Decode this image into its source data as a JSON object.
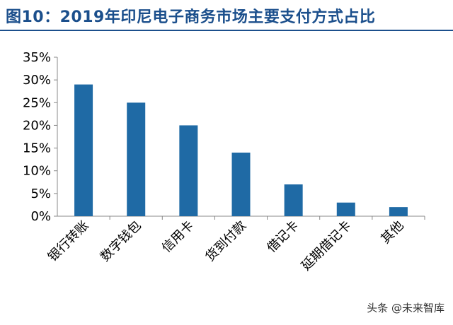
{
  "chart_data": {
    "type": "bar",
    "title": "图10：2019年印尼电子商务市场主要支付方式占比",
    "categories": [
      "银行转账",
      "数字钱包",
      "信用卡",
      "货到付款",
      "借记卡",
      "延期借记卡",
      "其他"
    ],
    "values": [
      29,
      25,
      20,
      14,
      7,
      3,
      2
    ],
    "ylim": [
      0,
      35
    ],
    "yticks": [
      "0%",
      "5%",
      "10%",
      "15%",
      "20%",
      "25%",
      "30%",
      "35%"
    ],
    "xlabel": "",
    "ylabel": "",
    "bar_color": "#1f6aa5",
    "grid": false,
    "legend": "none"
  },
  "watermark": "头条 @未来智库"
}
